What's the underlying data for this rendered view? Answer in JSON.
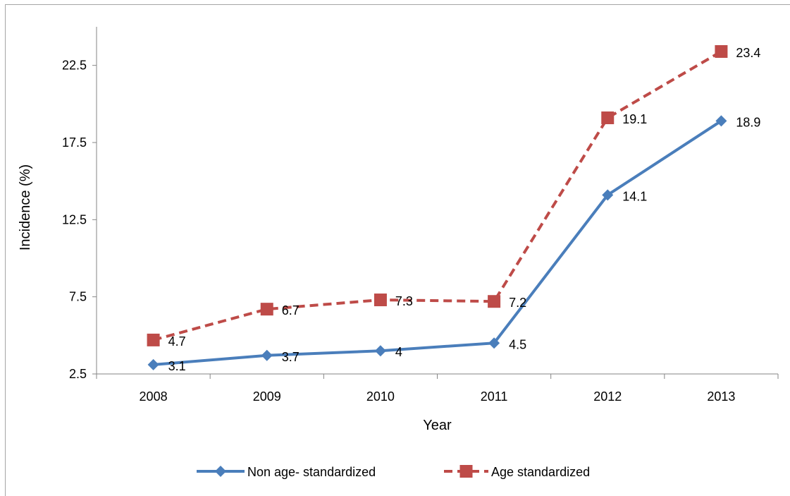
{
  "chart_data": {
    "type": "line",
    "title": "",
    "xlabel": "Year",
    "ylabel": "Incidence (%)",
    "categories": [
      "2008",
      "2009",
      "2010",
      "2011",
      "2012",
      "2013"
    ],
    "ylim": [
      2.5,
      25
    ],
    "yticks": [
      "2.5",
      "7.5",
      "12.5",
      "17.5",
      "22.5"
    ],
    "ytick_values": [
      2.5,
      7.5,
      12.5,
      17.5,
      22.5
    ],
    "grid": false,
    "legend_position": "bottom",
    "series": [
      {
        "name": "Non age- standardized",
        "values": [
          3.1,
          3.7,
          4,
          4.5,
          14.1,
          18.9
        ],
        "labels": [
          "3.1",
          "3.7",
          "4",
          "4.5",
          "14.1",
          "18.9"
        ],
        "color": "#4a7ebb",
        "style": "solid",
        "marker": "diamond"
      },
      {
        "name": "Age standardized",
        "values": [
          4.7,
          6.7,
          7.3,
          7.2,
          19.1,
          23.4
        ],
        "labels": [
          "4.7",
          "6.7",
          "7.3",
          "7.2",
          "19.1",
          "23.4"
        ],
        "color": "#be4b48",
        "style": "dashed",
        "marker": "square"
      }
    ]
  }
}
